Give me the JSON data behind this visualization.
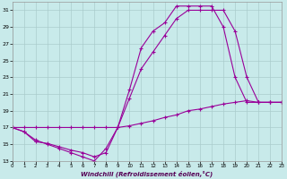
{
  "xlabel": "Windchill (Refroidissement éolien,°C)",
  "bg_color": "#c8eaea",
  "line_color": "#990099",
  "marker": "+",
  "markersize": 3,
  "linewidth": 0.8,
  "xlim": [
    0,
    23
  ],
  "ylim": [
    13,
    32
  ],
  "xticks": [
    0,
    1,
    2,
    3,
    4,
    5,
    6,
    7,
    8,
    9,
    10,
    11,
    12,
    13,
    14,
    15,
    16,
    17,
    18,
    19,
    20,
    21,
    22,
    23
  ],
  "yticks": [
    13,
    15,
    17,
    19,
    21,
    23,
    25,
    27,
    29,
    31
  ],
  "grid_color": "#aacccc",
  "series": [
    {
      "x": [
        0,
        1,
        2,
        3,
        4,
        5,
        6,
        7,
        8,
        9,
        10,
        11,
        12,
        13,
        14,
        15,
        16,
        17,
        18,
        19,
        20,
        21,
        22,
        23
      ],
      "y": [
        17,
        16.5,
        15.5,
        15.0,
        14.5,
        14.0,
        13.5,
        13.0,
        14.5,
        17.0,
        21.5,
        26.5,
        28.5,
        29.5,
        31.5,
        31.5,
        31.5,
        31.5,
        29.0,
        23.0,
        20.0,
        20.0,
        20.0,
        20.0
      ]
    },
    {
      "x": [
        0,
        1,
        2,
        3,
        4,
        5,
        6,
        7,
        8,
        9,
        10,
        11,
        12,
        13,
        14,
        15,
        16,
        17,
        18,
        19,
        20,
        21,
        22,
        23
      ],
      "y": [
        17,
        16.5,
        15.3,
        15.1,
        14.7,
        14.3,
        14.0,
        13.5,
        14.0,
        17.0,
        20.5,
        24.0,
        26.0,
        28.0,
        30.0,
        31.0,
        31.0,
        31.0,
        31.0,
        28.5,
        23.0,
        20.0,
        20.0,
        20.0
      ]
    },
    {
      "x": [
        0,
        1,
        2,
        3,
        4,
        5,
        6,
        7,
        8,
        9,
        10,
        11,
        12,
        13,
        14,
        15,
        16,
        17,
        18,
        19,
        20,
        21,
        22,
        23
      ],
      "y": [
        17,
        17,
        17,
        17,
        17,
        17,
        17,
        17,
        17,
        17,
        17.2,
        17.5,
        17.8,
        18.2,
        18.5,
        19.0,
        19.2,
        19.5,
        19.8,
        20.0,
        20.2,
        20.0,
        20.0,
        20.0
      ]
    }
  ]
}
